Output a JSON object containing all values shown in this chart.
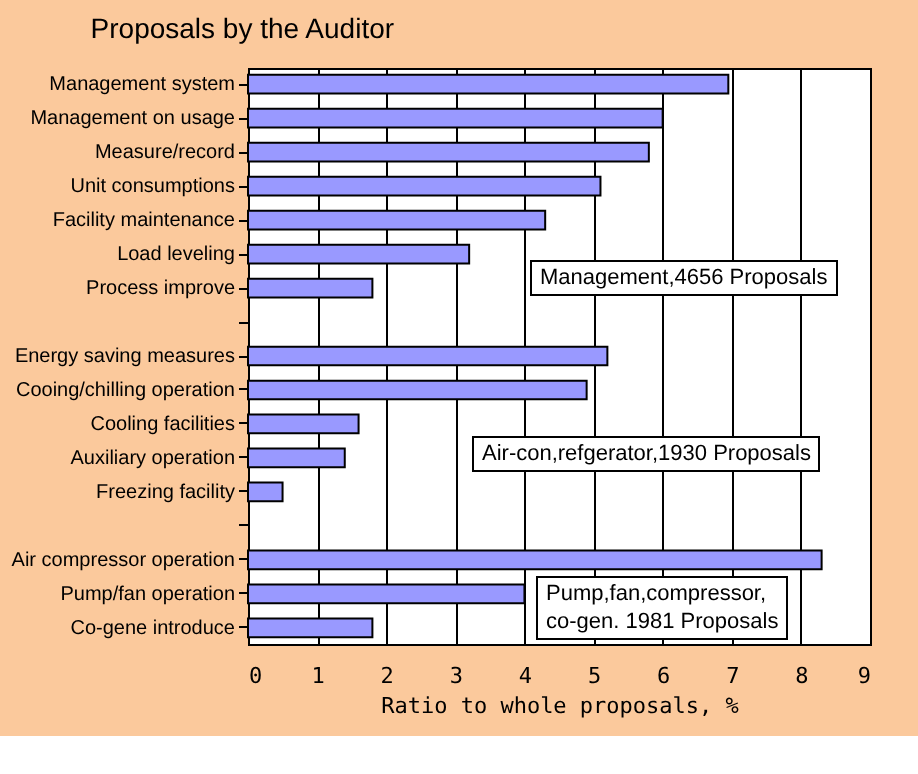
{
  "chart_data": {
    "type": "bar",
    "orientation": "horizontal",
    "title": "Proposals by the Auditor",
    "xlabel": "Ratio to whole proposals, %",
    "categories": [
      "Management system",
      "Management on usage",
      "Measure/record",
      "Unit consumptions",
      "Facility maintenance",
      "Load leveling",
      "Process improve",
      null,
      "Energy saving measures",
      "Cooing/chilling operation",
      "Cooling facilities",
      "Auxiliary operation",
      "Freezing facility",
      null,
      "Air compressor operation",
      "Pump/fan operation",
      "Co-gene introduce"
    ],
    "values": [
      6.95,
      6.0,
      5.8,
      5.1,
      4.3,
      3.2,
      1.8,
      null,
      5.2,
      4.9,
      1.6,
      1.4,
      0.5,
      null,
      8.3,
      4.0,
      1.8
    ],
    "color": "#9999ff",
    "xlim": [
      0,
      9
    ],
    "xticks": [
      0,
      1,
      2,
      3,
      4,
      5,
      6,
      7,
      8,
      9
    ],
    "grid": "x",
    "annotations": [
      "Management,4656 Proposals",
      "Air-con,refgerator,1930 Proposals",
      "Pump,fan,compressor,\nco-gen.  1981 Proposals"
    ]
  }
}
